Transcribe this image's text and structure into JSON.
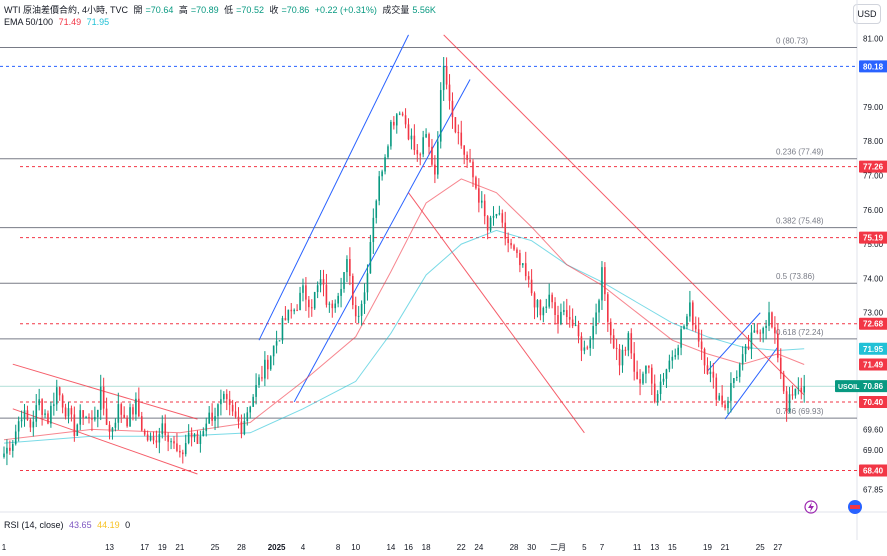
{
  "header": {
    "symbol": "WTI 原油差價合約, 4小時, TVC",
    "open_label": "開",
    "open": "=70.64",
    "high_label": "高",
    "high": "=70.89",
    "low_label": "低",
    "low": "=70.52",
    "close_label": "收",
    "close": "=70.86",
    "change": "+0.22 (+0.31%)",
    "volume_label": "成交量",
    "volume": "5.56K"
  },
  "ema_legend": {
    "label": "EMA 50/100",
    "ema50": "71.49",
    "ema100": "71.95"
  },
  "rsi_legend": {
    "label": "RSI (14, close)",
    "rsi": "43.65",
    "ma": "44.19",
    "extra": "0"
  },
  "currency": "USD",
  "colors": {
    "up": "#089981",
    "down": "#f23645",
    "ema50": "#f23645",
    "ema100": "#22c1d6",
    "blue_channel": "#2962ff",
    "red_channel": "#f23645",
    "fib": "#787b86"
  },
  "chart_data": {
    "type": "candlestick",
    "ylim": [
      67.6,
      81.3
    ],
    "yticks": [
      {
        "label": "81.00",
        "value": 81.0
      },
      {
        "label": "79.00",
        "value": 79.0
      },
      {
        "label": "78.00",
        "value": 78.0
      },
      {
        "label": "77.00",
        "value": 77.0
      },
      {
        "label": "76.00",
        "value": 76.0
      },
      {
        "label": "75.00",
        "value": 75.0
      },
      {
        "label": "74.00",
        "value": 74.0
      },
      {
        "label": "73.00",
        "value": 73.0
      },
      {
        "label": "72.00",
        "value": 72.0
      },
      {
        "label": "69.60",
        "value": 69.6
      },
      {
        "label": "69.00",
        "value": 69.0
      },
      {
        "label": "67.85",
        "value": 67.85
      }
    ],
    "xticks": [
      {
        "label": "1",
        "x": 0
      },
      {
        "label": "13",
        "x": 12
      },
      {
        "label": "17",
        "x": 16
      },
      {
        "label": "19",
        "x": 18
      },
      {
        "label": "21",
        "x": 20
      },
      {
        "label": "25",
        "x": 24
      },
      {
        "label": "28",
        "x": 27
      },
      {
        "label": "2025",
        "x": 31
      },
      {
        "label": "4",
        "x": 34
      },
      {
        "label": "8",
        "x": 38
      },
      {
        "label": "10",
        "x": 40
      },
      {
        "label": "14",
        "x": 44
      },
      {
        "label": "16",
        "x": 46
      },
      {
        "label": "18",
        "x": 48
      },
      {
        "label": "22",
        "x": 52
      },
      {
        "label": "24",
        "x": 54
      },
      {
        "label": "28",
        "x": 58
      },
      {
        "label": "30",
        "x": 60
      },
      {
        "label": "二月",
        "x": 63
      },
      {
        "label": "5",
        "x": 66
      },
      {
        "label": "7",
        "x": 68
      },
      {
        "label": "11",
        "x": 72
      },
      {
        "label": "13",
        "x": 74
      },
      {
        "label": "15",
        "x": 76
      },
      {
        "label": "19",
        "x": 80
      },
      {
        "label": "21",
        "x": 82
      },
      {
        "label": "25",
        "x": 86
      },
      {
        "label": "27",
        "x": 88
      }
    ],
    "x_range": [
      0,
      92
    ],
    "fib_levels": [
      {
        "label": "0 (80.73)",
        "value": 80.73
      },
      {
        "label": "0.236 (77.49)",
        "value": 77.49
      },
      {
        "label": "0.382 (75.48)",
        "value": 75.48
      },
      {
        "label": "0.5 (73.86)",
        "value": 73.86
      },
      {
        "label": "0.618 (72.24)",
        "value": 72.24
      },
      {
        "label": "0.786 (69.93)",
        "value": 69.93
      }
    ],
    "price_tags": [
      {
        "label": "80.18",
        "value": 80.18,
        "color": "#2962ff",
        "dashed": true
      },
      {
        "label": "77.26",
        "value": 77.26,
        "color": "#f23645",
        "dashed": true
      },
      {
        "label": "75.19",
        "value": 75.19,
        "color": "#f23645",
        "dashed": true
      },
      {
        "label": "72.68",
        "value": 72.68,
        "color": "#f23645",
        "dashed": true
      },
      {
        "label": "71.95",
        "value": 71.95,
        "color": "#22c1d6",
        "dashed": false
      },
      {
        "label": "71.49",
        "value": 71.49,
        "color": "#f23645",
        "dashed": false
      },
      {
        "label": "USOIL",
        "value": 70.86,
        "color": "#089981",
        "dashed": false,
        "price": "70.86"
      },
      {
        "label": "70.40",
        "value": 70.4,
        "color": "#f23645",
        "dashed": true
      },
      {
        "label": "68.40",
        "value": 68.4,
        "color": "#f23645",
        "dashed": true
      }
    ],
    "close_path": [
      [
        0,
        68.9
      ],
      [
        1,
        69.3
      ],
      [
        2,
        70.1
      ],
      [
        3,
        69.7
      ],
      [
        4,
        70.4
      ],
      [
        5,
        69.9
      ],
      [
        6,
        70.8
      ],
      [
        7,
        70.2
      ],
      [
        8,
        69.6
      ],
      [
        9,
        70.1
      ],
      [
        10,
        69.8
      ],
      [
        11,
        70.6
      ],
      [
        12,
        69.5
      ],
      [
        13,
        70.2
      ],
      [
        14,
        69.9
      ],
      [
        15,
        70.3
      ],
      [
        16,
        69.4
      ],
      [
        17,
        69.2
      ],
      [
        18,
        69.8
      ],
      [
        19,
        69.3
      ],
      [
        20,
        68.7
      ],
      [
        21,
        69.5
      ],
      [
        22,
        69.2
      ],
      [
        23,
        69.9
      ],
      [
        24,
        70.1
      ],
      [
        25,
        70.4
      ],
      [
        26,
        70.0
      ],
      [
        27,
        69.7
      ],
      [
        28,
        70.4
      ],
      [
        29,
        71.0
      ],
      [
        30,
        71.6
      ],
      [
        31,
        72.2
      ],
      [
        32,
        72.8
      ],
      [
        33,
        73.1
      ],
      [
        34,
        73.6
      ],
      [
        35,
        73.3
      ],
      [
        36,
        73.9
      ],
      [
        37,
        73.1
      ],
      [
        38,
        73.7
      ],
      [
        39,
        74.4
      ],
      [
        40,
        72.9
      ],
      [
        41,
        73.6
      ],
      [
        42,
        75.9
      ],
      [
        43,
        77.3
      ],
      [
        44,
        78.5
      ],
      [
        45,
        79.0
      ],
      [
        46,
        78.3
      ],
      [
        47,
        77.5
      ],
      [
        48,
        78.1
      ],
      [
        49,
        77.1
      ],
      [
        50,
        80.4
      ],
      [
        51,
        78.8
      ],
      [
        52,
        77.9
      ],
      [
        53,
        77.2
      ],
      [
        54,
        76.4
      ],
      [
        55,
        75.4
      ],
      [
        56,
        75.9
      ],
      [
        57,
        75.2
      ],
      [
        58,
        74.7
      ],
      [
        59,
        74.2
      ],
      [
        60,
        73.6
      ],
      [
        61,
        72.9
      ],
      [
        62,
        73.4
      ],
      [
        63,
        72.7
      ],
      [
        64,
        73.1
      ],
      [
        65,
        72.4
      ],
      [
        66,
        71.9
      ],
      [
        67,
        72.6
      ],
      [
        68,
        74.1
      ],
      [
        69,
        72.4
      ],
      [
        70,
        71.6
      ],
      [
        71,
        72.2
      ],
      [
        72,
        70.9
      ],
      [
        73,
        71.5
      ],
      [
        74,
        70.6
      ],
      [
        75,
        71.2
      ],
      [
        76,
        71.8
      ],
      [
        77,
        72.4
      ],
      [
        78,
        73.1
      ],
      [
        79,
        72.3
      ],
      [
        80,
        71.4
      ],
      [
        81,
        70.7
      ],
      [
        82,
        70.3
      ],
      [
        83,
        71.1
      ],
      [
        84,
        71.6
      ],
      [
        85,
        72.2
      ],
      [
        86,
        72.6
      ],
      [
        87,
        72.9
      ],
      [
        88,
        71.8
      ],
      [
        89,
        70.3
      ],
      [
        90,
        70.64
      ],
      [
        91,
        70.86
      ]
    ],
    "ema50_path": [
      [
        0,
        69.3
      ],
      [
        10,
        69.6
      ],
      [
        20,
        69.5
      ],
      [
        28,
        69.8
      ],
      [
        34,
        71.0
      ],
      [
        40,
        72.3
      ],
      [
        44,
        74.2
      ],
      [
        48,
        76.2
      ],
      [
        52,
        76.9
      ],
      [
        56,
        76.5
      ],
      [
        60,
        75.5
      ],
      [
        64,
        74.4
      ],
      [
        68,
        73.8
      ],
      [
        72,
        73.0
      ],
      [
        76,
        72.2
      ],
      [
        80,
        71.8
      ],
      [
        84,
        71.5
      ],
      [
        88,
        71.8
      ],
      [
        91,
        71.49
      ]
    ],
    "ema100_path": [
      [
        0,
        69.2
      ],
      [
        10,
        69.4
      ],
      [
        20,
        69.4
      ],
      [
        28,
        69.5
      ],
      [
        34,
        70.2
      ],
      [
        40,
        71.0
      ],
      [
        44,
        72.4
      ],
      [
        48,
        74.1
      ],
      [
        52,
        75.0
      ],
      [
        56,
        75.4
      ],
      [
        60,
        75.1
      ],
      [
        64,
        74.4
      ],
      [
        68,
        73.9
      ],
      [
        72,
        73.3
      ],
      [
        76,
        72.7
      ],
      [
        80,
        72.3
      ],
      [
        84,
        72.0
      ],
      [
        88,
        71.9
      ],
      [
        91,
        71.95
      ]
    ],
    "blue_channels": [
      {
        "a": [
          29,
          72.2
        ],
        "b": [
          46,
          81.1
        ]
      },
      {
        "a": [
          33,
          70.4
        ],
        "b": [
          53,
          79.8
        ]
      },
      {
        "a": [
          82,
          69.9
        ],
        "b": [
          88,
          72.0
        ]
      },
      {
        "a": [
          80,
          71.3
        ],
        "b": [
          86,
          73.0
        ]
      }
    ],
    "red_channels": [
      {
        "a": [
          50,
          81.1
        ],
        "b": [
          91,
          70.6
        ]
      },
      {
        "a": [
          46,
          76.5
        ],
        "b": [
          66,
          69.5
        ]
      },
      {
        "a": [
          1,
          71.5
        ],
        "b": [
          22,
          69.9
        ]
      },
      {
        "a": [
          1,
          70.2
        ],
        "b": [
          22,
          68.3
        ]
      }
    ]
  }
}
